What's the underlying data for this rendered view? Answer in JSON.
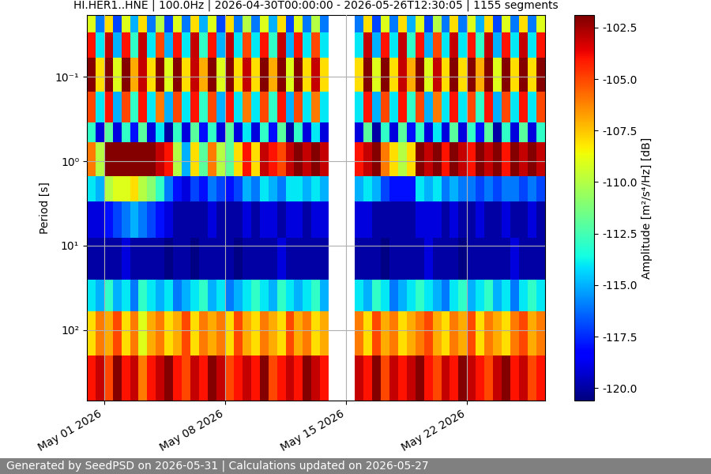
{
  "chart_data": {
    "type": "heatmap",
    "title": "HI.HER1..HNE | 100.0Hz | 2026-04-30T00:00:00 - 2026-05-26T12:30:05 | 1155 segments",
    "y_label": "Period [s]",
    "colorbar_label": "Amplitude [m²/s⁴/Hz] [dB]",
    "footer": "Generated by SeedPSD on 2026-05-31 | Calculations updated on 2026-05-27",
    "color": "jet",
    "log": "y",
    "grid": true,
    "x_edges": [
      "2026-04-30T00:00:00",
      "2026-04-30T12:00:00",
      "2026-05-01T00:00:00",
      "2026-05-01T12:00:00",
      "2026-05-02T00:00:00",
      "2026-05-02T12:00:00",
      "2026-05-03T00:00:00",
      "2026-05-03T12:00:00",
      "2026-05-04T00:00:00",
      "2026-05-04T12:00:00",
      "2026-05-05T00:00:00",
      "2026-05-05T12:00:00",
      "2026-05-06T00:00:00",
      "2026-05-06T12:00:00",
      "2026-05-07T00:00:00",
      "2026-05-07T12:00:00",
      "2026-05-08T00:00:00",
      "2026-05-08T12:00:00",
      "2026-05-09T00:00:00",
      "2026-05-09T12:00:00",
      "2026-05-10T00:00:00",
      "2026-05-10T12:00:00",
      "2026-05-11T00:00:00",
      "2026-05-11T12:00:00",
      "2026-05-12T00:00:00",
      "2026-05-12T12:00:00",
      "2026-05-13T00:00:00",
      "2026-05-13T12:00:00",
      "2026-05-14T00:00:00",
      "2026-05-14T12:00:00",
      "2026-05-15T00:00:00",
      "2026-05-15T12:00:00",
      "2026-05-16T00:00:00",
      "2026-05-16T12:00:00",
      "2026-05-17T00:00:00",
      "2026-05-17T12:00:00",
      "2026-05-18T00:00:00",
      "2026-05-18T12:00:00",
      "2026-05-19T00:00:00",
      "2026-05-19T12:00:00",
      "2026-05-20T00:00:00",
      "2026-05-20T12:00:00",
      "2026-05-21T00:00:00",
      "2026-05-21T12:00:00",
      "2026-05-22T00:00:00",
      "2026-05-22T12:00:00",
      "2026-05-23T00:00:00",
      "2026-05-23T12:00:00",
      "2026-05-24T00:00:00",
      "2026-05-24T12:00:00",
      "2026-05-25T00:00:00",
      "2026-05-25T12:00:00",
      "2026-05-26T00:00:00",
      "2026-05-26T12:30:05"
    ],
    "y_edges": [
      0.0187,
      0.03,
      0.06,
      0.15,
      0.35,
      0.6,
      1.5,
      3,
      8,
      25,
      60,
      200,
      680
    ],
    "cells": [
      [
        -109,
        -116,
        -108,
        -117,
        -109,
        -115,
        -108,
        -116,
        -110,
        -117,
        -109,
        -116,
        -108,
        -115,
        -109,
        -117,
        -108,
        -116,
        -110,
        -116,
        -109,
        -115,
        -108,
        -117,
        -109,
        -116,
        -110,
        -116,
        null,
        null,
        null,
        -116,
        -108,
        -117,
        -109,
        -116,
        -108,
        -115,
        -109,
        -117,
        -110,
        -116,
        -108,
        -116,
        -109,
        -115,
        -108,
        -117,
        -109,
        -116,
        -108,
        -116,
        -109
      ],
      [
        -104,
        -114,
        -103,
        -115,
        -104,
        -113,
        -103,
        -114,
        -105,
        -115,
        -104,
        -114,
        -103,
        -113,
        -104,
        -115,
        -103,
        -114,
        -105,
        -114,
        -104,
        -113,
        -103,
        -115,
        -104,
        -114,
        -105,
        -114,
        null,
        null,
        null,
        -114,
        -103,
        -115,
        -104,
        -114,
        -103,
        -113,
        -104,
        -115,
        -105,
        -114,
        -103,
        -114,
        -104,
        -113,
        -103,
        -115,
        -104,
        -114,
        -103,
        -114,
        -104
      ],
      [
        -102,
        -108,
        -102,
        -109,
        -102,
        -107,
        -103,
        -108,
        -102,
        -109,
        -102,
        -108,
        -103,
        -107,
        -102,
        -109,
        -102,
        -108,
        -103,
        -108,
        -102,
        -107,
        -102,
        -109,
        -102,
        -108,
        -103,
        -108,
        null,
        null,
        null,
        -108,
        -102,
        -109,
        -102,
        -108,
        -103,
        -107,
        -102,
        -109,
        -103,
        -108,
        -102,
        -108,
        -102,
        -107,
        -102,
        -109,
        -102,
        -108,
        -102,
        -108,
        -102
      ],
      [
        -105,
        -114,
        -104,
        -115,
        -105,
        -113,
        -104,
        -114,
        -106,
        -115,
        -105,
        -114,
        -104,
        -113,
        -105,
        -115,
        -104,
        -114,
        -106,
        -114,
        -105,
        -113,
        -104,
        -115,
        -105,
        -114,
        -106,
        -114,
        null,
        null,
        null,
        -114,
        -104,
        -115,
        -105,
        -114,
        -104,
        -113,
        -105,
        -115,
        -106,
        -114,
        -104,
        -114,
        -105,
        -113,
        -104,
        -115,
        -105,
        -114,
        -104,
        -114,
        -105
      ],
      [
        -113,
        -119,
        -112,
        -119,
        -113,
        -118,
        -112,
        -119,
        -114,
        -120,
        -113,
        -119,
        -112,
        -118,
        -113,
        -119,
        -112,
        -119,
        -114,
        -119,
        -113,
        -118,
        -112,
        -120,
        -113,
        -119,
        -114,
        -119,
        null,
        null,
        null,
        -119,
        -112,
        -120,
        -113,
        -119,
        -112,
        -118,
        -113,
        -119,
        -114,
        -119,
        -112,
        -119,
        -113,
        -118,
        -112,
        -120,
        -113,
        -119,
        -112,
        -119,
        -113
      ],
      [
        -106,
        -110,
        -102,
        -102,
        -102,
        -102,
        -102,
        -102,
        -103,
        -104,
        -110,
        -115,
        -108,
        -112,
        -106,
        -110,
        -112,
        -108,
        -104,
        -108,
        -103,
        -104,
        -105,
        -103,
        -102,
        -103,
        -102,
        -103,
        null,
        null,
        null,
        -104,
        -103,
        -102,
        -106,
        -108,
        -110,
        -108,
        -102,
        -103,
        -102,
        -104,
        -102,
        -103,
        -104,
        -102,
        -103,
        -102,
        -104,
        -102,
        -103,
        -102,
        -103
      ],
      [
        -114,
        -115,
        -110,
        -109,
        -109,
        -108,
        -110,
        -111,
        -113,
        -116,
        -118,
        -119,
        -117,
        -118,
        -116,
        -117,
        -118,
        -117,
        -115,
        -116,
        -114,
        -115,
        -116,
        -114,
        -114,
        -115,
        -114,
        -115,
        null,
        null,
        null,
        -115,
        -114,
        -115,
        -117,
        -118,
        -118,
        -118,
        -114,
        -115,
        -114,
        -116,
        -115,
        -116,
        -116,
        -117,
        -116,
        -117,
        -116,
        -116,
        -117,
        -116,
        -117
      ],
      [
        -119,
        -119,
        -118,
        -117,
        -116,
        -115,
        -116,
        -117,
        -118,
        -119,
        -120,
        -120,
        -120,
        -120,
        -119,
        -120,
        -120,
        -120,
        -119,
        -120,
        -119,
        -119,
        -120,
        -119,
        -119,
        -120,
        -119,
        -119,
        null,
        null,
        null,
        -119,
        -119,
        -120,
        -120,
        -120,
        -120,
        -120,
        -119,
        -119,
        -119,
        -120,
        -119,
        -120,
        -120,
        -119,
        -120,
        -120,
        -119,
        -120,
        -120,
        -119,
        -120
      ],
      [
        -120,
        -120,
        -120,
        -120,
        -119,
        -120,
        -120,
        -120,
        -120,
        -120.5,
        -120,
        -120,
        -120.5,
        -120,
        -120,
        -120,
        -120,
        -120.5,
        -120,
        -120,
        -120,
        -120,
        -119,
        -120,
        -120,
        -120,
        -120,
        -120,
        null,
        null,
        null,
        -120,
        -120,
        -120,
        -120.5,
        -120,
        -120,
        -120,
        -120,
        -119,
        -120,
        -120,
        -120,
        -120.5,
        -120,
        -120,
        -120,
        -120,
        -120,
        -119,
        -120,
        -120,
        -120
      ],
      [
        -114,
        -115,
        -113,
        -115,
        -114,
        -116,
        -113,
        -114,
        -115,
        -114,
        -116,
        -115,
        -114,
        -113,
        -115,
        -114,
        -116,
        -115,
        -114,
        -113,
        -114,
        -115,
        -113,
        -114,
        -115,
        -114,
        -113,
        -115,
        null,
        null,
        null,
        -114,
        -115,
        -113,
        -114,
        -116,
        -115,
        -114,
        -113,
        -114,
        -115,
        -116,
        -114,
        -113,
        -115,
        -114,
        -113,
        -115,
        -114,
        -116,
        -114,
        -113,
        -114
      ],
      [
        -108,
        -106,
        -107,
        -105,
        -108,
        -106,
        -109,
        -107,
        -106,
        -108,
        -107,
        -105,
        -108,
        -106,
        -107,
        -106,
        -108,
        -105,
        -107,
        -108,
        -106,
        -107,
        -108,
        -105,
        -107,
        -106,
        -108,
        -107,
        null,
        null,
        null,
        -106,
        -108,
        -105,
        -107,
        -106,
        -108,
        -107,
        -106,
        -105,
        -107,
        -108,
        -106,
        -107,
        -105,
        -108,
        -106,
        -107,
        -108,
        -106,
        -105,
        -107,
        -106
      ],
      [
        -104,
        -103,
        -105,
        -102,
        -104,
        -103,
        -106,
        -104,
        -103,
        -102,
        -104,
        -105,
        -103,
        -104,
        -102,
        -103,
        -105,
        -104,
        -103,
        -104,
        -102,
        -105,
        -104,
        -103,
        -104,
        -102,
        -103,
        -104,
        null,
        null,
        null,
        -103,
        -104,
        -102,
        -105,
        -103,
        -104,
        -103,
        -102,
        -104,
        -105,
        -103,
        -104,
        -102,
        -103,
        -104,
        -105,
        -103,
        -102,
        -104,
        -103,
        -105,
        -104
      ]
    ],
    "xlim": [
      "2026-04-30T00:00:00",
      "2026-05-26T12:30:05"
    ],
    "ylim": [
      680,
      0.0187
    ],
    "xticks": [
      {
        "value": "2026-05-01T00:00:00",
        "label": "May 01 2026"
      },
      {
        "value": "2026-05-08T00:00:00",
        "label": "May 08 2026"
      },
      {
        "value": "2026-05-15T00:00:00",
        "label": "May 15 2026"
      },
      {
        "value": "2026-05-22T00:00:00",
        "label": "May 22 2026"
      }
    ],
    "yticks": [
      {
        "value": 0.1,
        "label": "10⁻¹"
      },
      {
        "value": 1,
        "label": "10⁰"
      },
      {
        "value": 10,
        "label": "10¹"
      },
      {
        "value": 100,
        "label": "10²"
      }
    ],
    "colorbar_range": [
      -120.6,
      -101.9
    ],
    "colorbar_ticks": [
      -120.0,
      -117.5,
      -115.0,
      -112.5,
      -110.0,
      -107.5,
      -105.0,
      -102.5
    ]
  }
}
